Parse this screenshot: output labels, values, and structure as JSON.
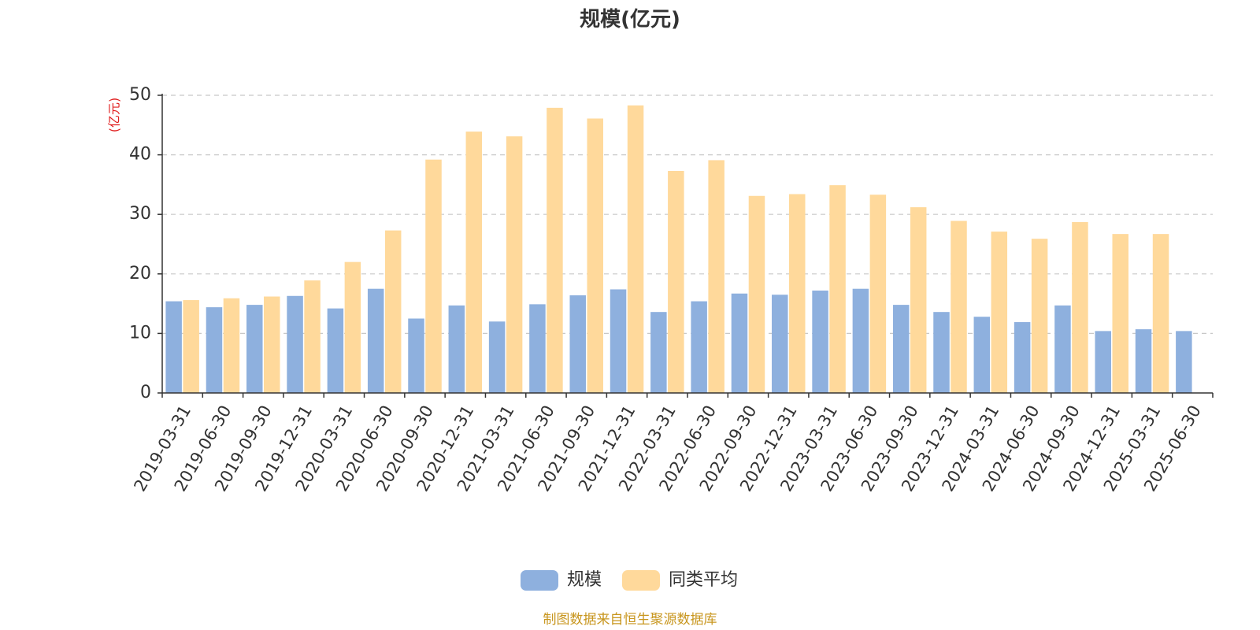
{
  "chart_data": {
    "type": "bar",
    "title": "规模(亿元)",
    "ylabel": "(亿元)",
    "ylim": [
      0,
      50
    ],
    "yticks": [
      0,
      10,
      20,
      30,
      40,
      50
    ],
    "grid": true,
    "legend_position": "bottom",
    "categories": [
      "2019-03-31",
      "2019-06-30",
      "2019-09-30",
      "2019-12-31",
      "2020-03-31",
      "2020-06-30",
      "2020-09-30",
      "2020-12-31",
      "2021-03-31",
      "2021-06-30",
      "2021-09-30",
      "2021-12-31",
      "2022-03-31",
      "2022-06-30",
      "2022-09-30",
      "2022-12-31",
      "2023-03-31",
      "2023-06-30",
      "2023-09-30",
      "2023-12-31",
      "2024-03-31",
      "2024-06-30",
      "2024-09-30",
      "2024-12-31",
      "2025-03-31",
      "2025-06-30"
    ],
    "series": [
      {
        "name": "规模",
        "color": "#8eb0de",
        "values": [
          15.4,
          14.4,
          14.8,
          16.3,
          14.2,
          17.5,
          12.5,
          14.7,
          12.0,
          14.9,
          16.4,
          17.4,
          13.6,
          15.4,
          16.7,
          16.5,
          17.2,
          17.5,
          14.8,
          13.6,
          12.8,
          11.9,
          14.7,
          10.4,
          10.7,
          10.4
        ]
      },
      {
        "name": "同类平均",
        "color": "#ffd99b",
        "values": [
          15.6,
          15.9,
          16.2,
          18.9,
          22.0,
          27.3,
          39.2,
          43.9,
          43.1,
          47.9,
          46.1,
          48.3,
          37.3,
          39.1,
          33.1,
          33.4,
          34.9,
          33.3,
          31.2,
          28.9,
          27.1,
          25.9,
          28.7,
          26.7,
          26.7,
          null
        ]
      }
    ]
  },
  "source_note": "制图数据来自恒生聚源数据库"
}
